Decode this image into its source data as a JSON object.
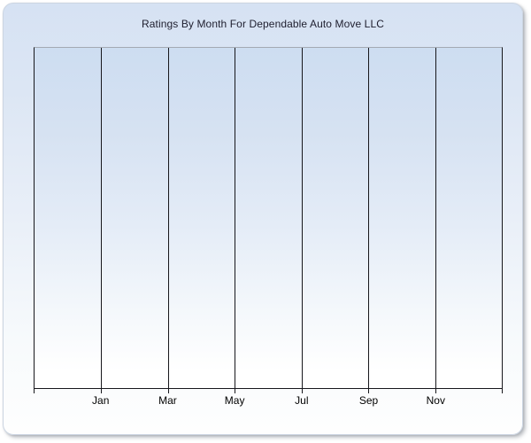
{
  "chart_data": {
    "type": "line",
    "title": "Ratings By Month For Dependable Auto Move LLC",
    "x_tick_labels": [
      "Jan",
      "Mar",
      "May",
      "Jul",
      "Sep",
      "Nov"
    ],
    "y_tick_labels": [],
    "series": [],
    "grid": "vertical-only",
    "legend": "none",
    "plot_empty": true
  },
  "colors": {
    "panel_background_top": "#d6e2f3",
    "panel_background_bottom": "#ffffff",
    "plot_background_top": "#cdddf1",
    "plot_background_bottom": "#ffffff",
    "gridline": "#17171c",
    "plot_top_border": "#a3a9b3",
    "title_text": "#1e1e2e",
    "axis_label_text": "#000000"
  }
}
